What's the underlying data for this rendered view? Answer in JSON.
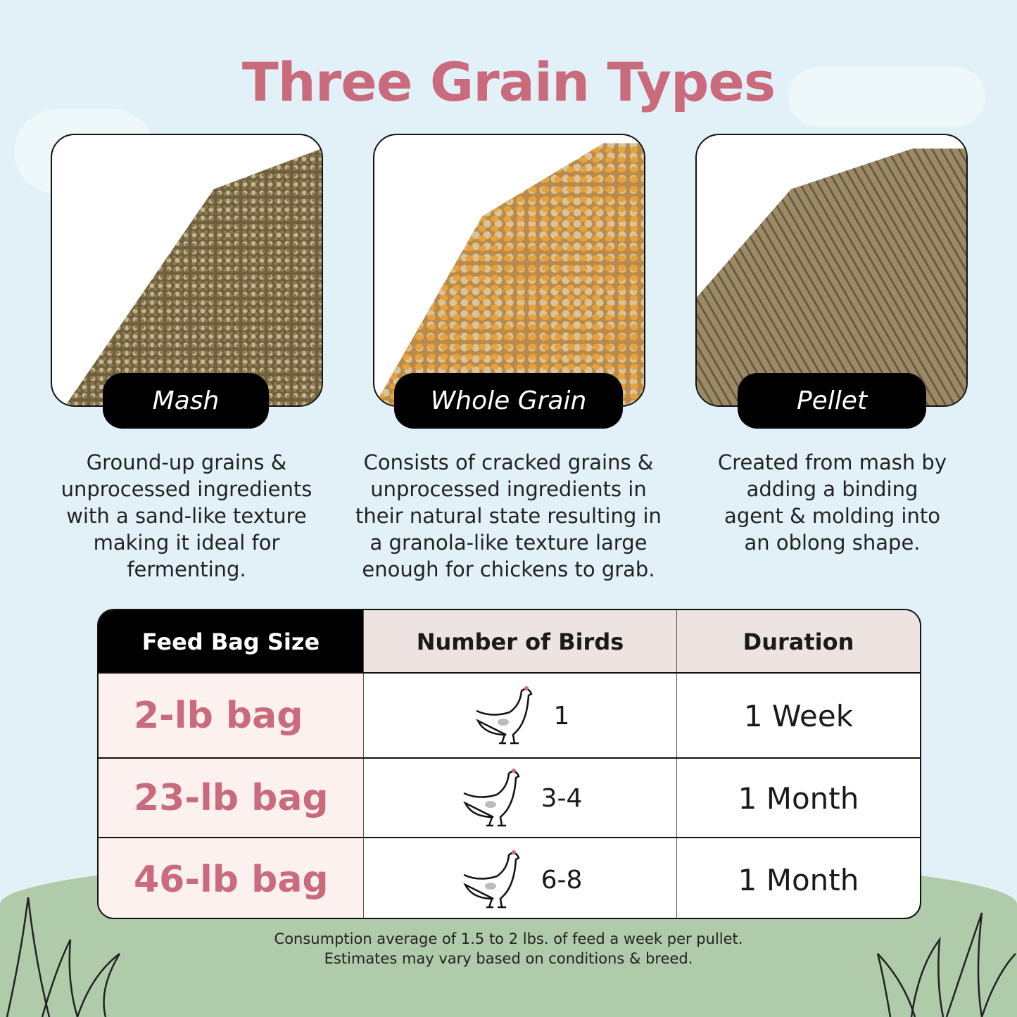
{
  "title": "Three Grain Types",
  "grains": [
    {
      "label": "Mash",
      "description": "Ground-up grains & unprocessed ingredients with a sand-like texture making it ideal for fermenting."
    },
    {
      "label": "Whole Grain",
      "description": "Consists of cracked grains & unprocessed ingredients in their natural state resulting in a granola-like texture large enough for chickens to grab."
    },
    {
      "label": "Pellet",
      "description": "Created from mash by adding a binding agent & molding into an oblong shape."
    }
  ],
  "table": {
    "headers": [
      "Feed Bag Size",
      "Number of Birds",
      "Duration"
    ],
    "rows": [
      {
        "bag": "2-lb bag",
        "birds": "1",
        "duration": "1 Week"
      },
      {
        "bag": "23-lb bag",
        "birds": "3-4",
        "duration": "1 Month"
      },
      {
        "bag": "46-lb bag",
        "birds": "6-8",
        "duration": "1 Month"
      }
    ]
  },
  "footnote": [
    "Consumption average of 1.5 to 2 lbs. of feed a week per pullet.",
    "Estimates may vary based on conditions & breed."
  ],
  "colors": {
    "accent": "#c96a7d",
    "background": "#e2f1f7",
    "hill": "#b0cba9"
  }
}
